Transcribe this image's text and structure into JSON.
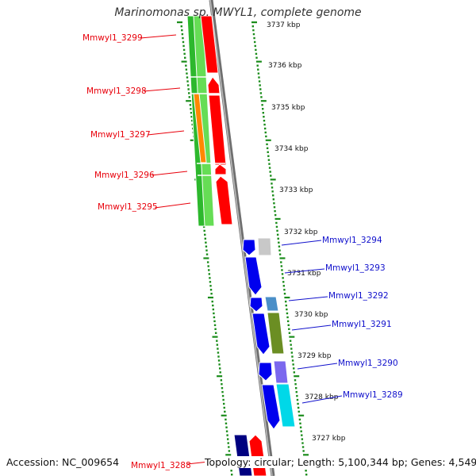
{
  "title": "Marinomonas sp. MWYL1, complete genome",
  "accession_text": "Accession: NC_009654",
  "topology_text": "Topology: circular; Length: 5,100,344 bp; Genes: 4,549",
  "colors": {
    "left_label": "#e8000b",
    "right_label": "#1010cc",
    "tick": "#1a8c1a",
    "backbone": "#808080"
  },
  "kbp_ticks": [
    "3737 kbp",
    "3736 kbp",
    "3735 kbp",
    "3734 kbp",
    "3733 kbp",
    "3732 kbp",
    "3731 kbp",
    "3730 kbp",
    "3729 kbp",
    "3728 kbp",
    "3727 kbp"
  ],
  "left_genes": [
    {
      "label": "Mmwyl1_3299",
      "color": "#e8000b"
    },
    {
      "label": "Mmwyl1_3298",
      "color": "#e8000b"
    },
    {
      "label": "Mmwyl1_3297",
      "color": "#e8000b"
    },
    {
      "label": "Mmwyl1_3296",
      "color": "#e8000b"
    },
    {
      "label": "Mmwyl1_3295",
      "color": "#e8000b"
    },
    {
      "label": "Mmwyl1_3288",
      "color": "#e8000b"
    }
  ],
  "right_genes": [
    {
      "label": "Mmwyl1_3294",
      "color": "#1010cc"
    },
    {
      "label": "Mmwyl1_3293",
      "color": "#1010cc"
    },
    {
      "label": "Mmwyl1_3292",
      "color": "#1010cc"
    },
    {
      "label": "Mmwyl1_3291",
      "color": "#1010cc"
    },
    {
      "label": "Mmwyl1_3290",
      "color": "#1010cc"
    },
    {
      "label": "Mmwyl1_3289",
      "color": "#1010cc"
    }
  ],
  "feature_colors": [
    "#2db82d",
    "#66dd55",
    "#ff8800",
    "#ff0000",
    "#0000ee",
    "#c8c8c8",
    "#4a8fc8",
    "#6b8e23",
    "#7b68ee",
    "#00d8e8",
    "#000080"
  ]
}
